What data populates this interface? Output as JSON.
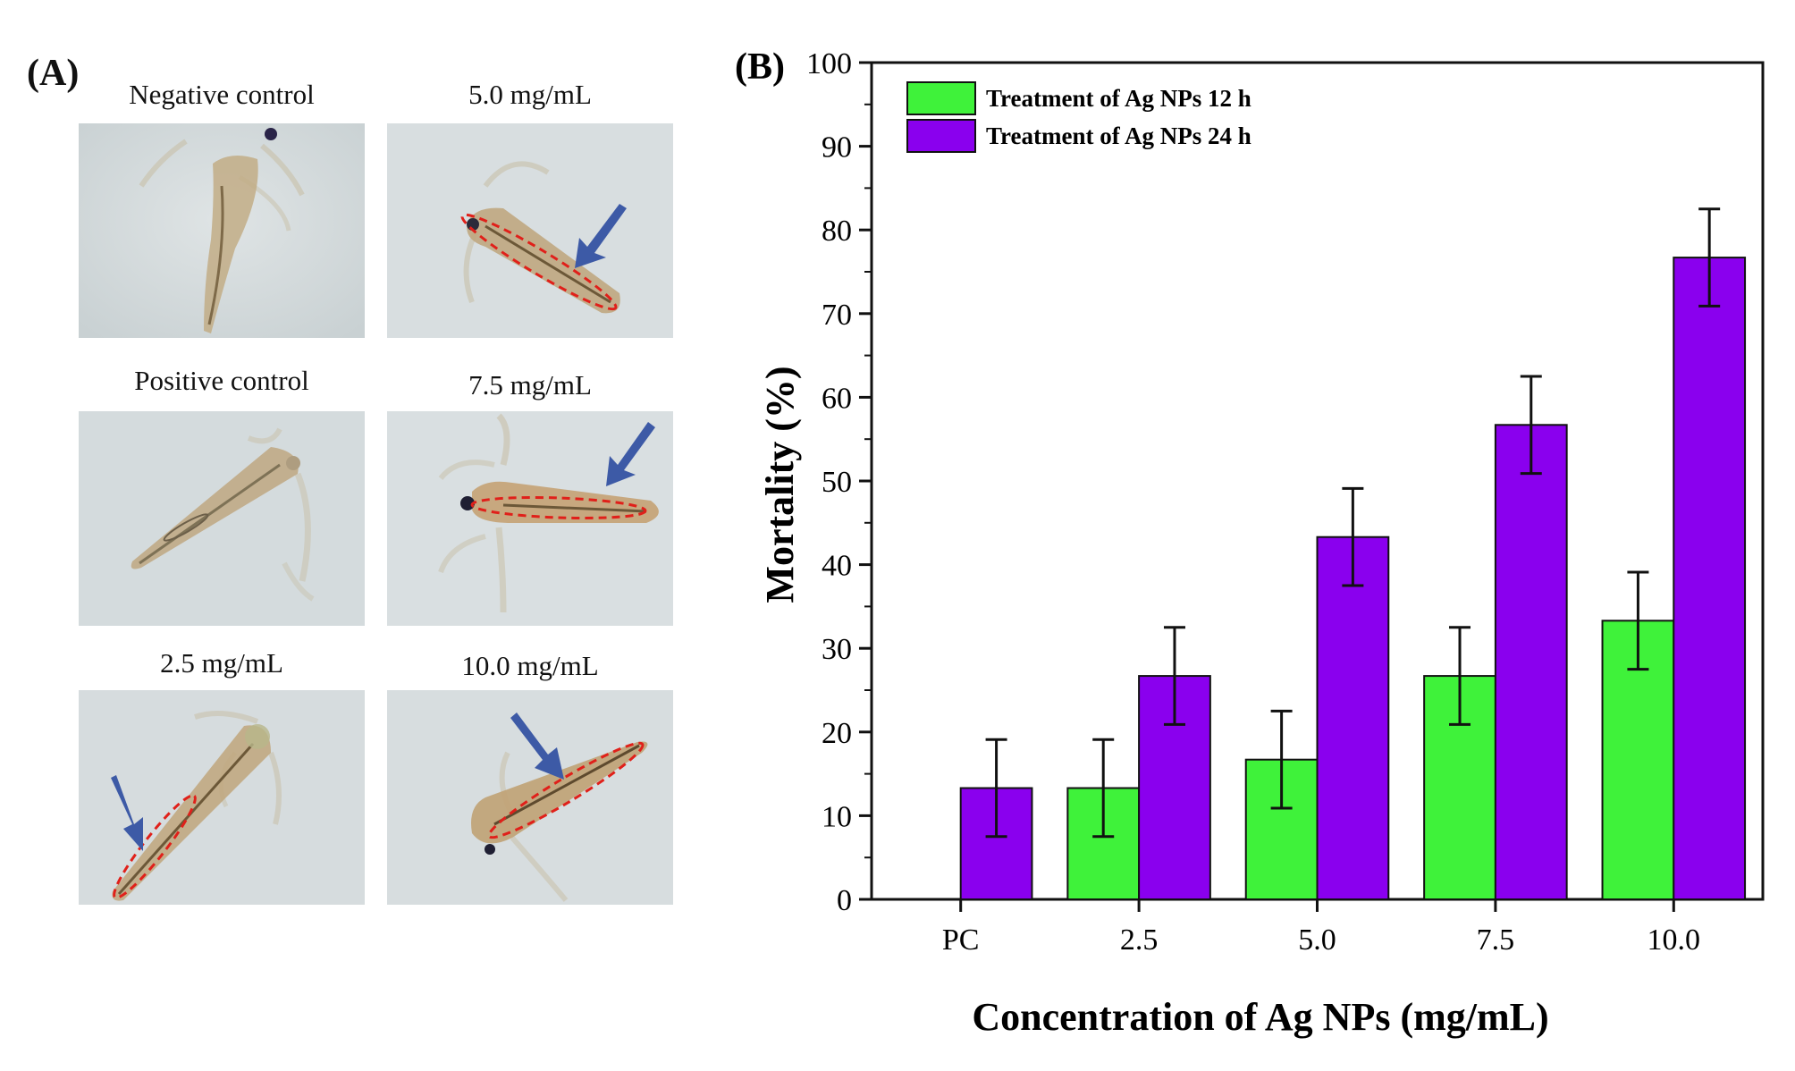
{
  "panel_a": {
    "label": "(A)",
    "photos": [
      {
        "caption": "Negative control"
      },
      {
        "caption": "5.0 mg/mL"
      },
      {
        "caption": "Positive control"
      },
      {
        "caption": "7.5 mg/mL"
      },
      {
        "caption": "2.5 mg/mL"
      },
      {
        "caption": "10.0 mg/mL"
      }
    ],
    "colors": {
      "background": "#d6dcde",
      "body": "#b49b72",
      "outline": "#e0201a",
      "arrow": "#3d5aa6"
    }
  },
  "panel_b": {
    "label": "(B)"
  },
  "chart_data": {
    "type": "bar",
    "xlabel": "Concentration of Ag NPs (mg/mL)",
    "ylabel": "Mortality (%)",
    "categories": [
      "PC",
      "2.5",
      "5.0",
      "7.5",
      "10.0"
    ],
    "ylim": [
      0,
      100
    ],
    "yticks": [
      0,
      10,
      20,
      30,
      40,
      50,
      60,
      70,
      80,
      90,
      100
    ],
    "grid": false,
    "legend_position": "top-left",
    "series": [
      {
        "name": "Treatment of Ag NPs 12 h",
        "color": "#3ff23a",
        "values": [
          0,
          13.3,
          16.7,
          26.7,
          33.3
        ],
        "errors": [
          0,
          5.8,
          5.8,
          5.8,
          5.8
        ]
      },
      {
        "name": "Treatment of Ag NPs 24 h",
        "color": "#8a00ee",
        "values": [
          13.3,
          26.7,
          43.3,
          56.7,
          76.7
        ],
        "errors": [
          5.8,
          5.8,
          5.8,
          5.8,
          5.8
        ]
      }
    ]
  }
}
